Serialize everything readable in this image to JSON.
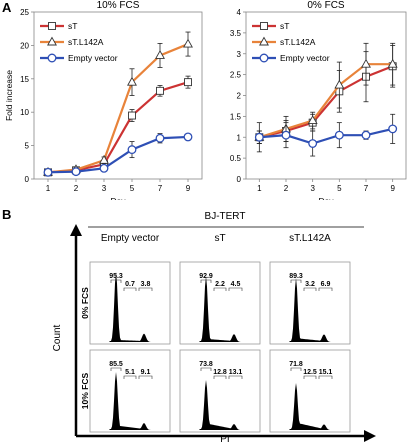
{
  "panel_letters": {
    "a": "A",
    "b": "B"
  },
  "chart_data": [
    {
      "type": "line",
      "title": "10% FCS",
      "xlabel": "Day",
      "ylabel": "Fold increase",
      "x": [
        1,
        2,
        3,
        5,
        7,
        9
      ],
      "ylim": [
        0,
        25
      ],
      "yticks": [
        0,
        5,
        10,
        15,
        20,
        25
      ],
      "legend_position": "top-left",
      "series": [
        {
          "name": "sT",
          "color": "#cc3333",
          "marker": "square",
          "values": [
            1,
            1.3,
            2.2,
            9.5,
            13.2,
            14.5
          ],
          "errors": [
            0.2,
            0.3,
            0.4,
            0.9,
            0.8,
            0.9
          ]
        },
        {
          "name": "sT.L142A",
          "color": "#e8833a",
          "marker": "triangle",
          "values": [
            1,
            1.4,
            2.8,
            14.5,
            18.5,
            20.2
          ],
          "errors": [
            0.2,
            0.3,
            0.5,
            2.0,
            1.8,
            1.8
          ]
        },
        {
          "name": "Empty vector",
          "color": "#2e4fb5",
          "marker": "circle",
          "values": [
            1,
            1.1,
            1.6,
            4.4,
            6.1,
            6.3
          ],
          "errors": [
            0.2,
            0.2,
            0.3,
            1.2,
            0.7,
            0.3
          ]
        }
      ]
    },
    {
      "type": "line",
      "title": "0% FCS",
      "xlabel": "Day",
      "ylabel": "",
      "x": [
        1,
        2,
        3,
        5,
        7,
        9
      ],
      "ylim": [
        0,
        4
      ],
      "yticks": [
        0,
        0.5,
        1,
        1.5,
        2,
        2.5,
        3,
        3.5,
        4
      ],
      "legend_position": "top-left",
      "series": [
        {
          "name": "sT",
          "color": "#cc3333",
          "marker": "square",
          "values": [
            1,
            1.15,
            1.35,
            2.1,
            2.45,
            2.7
          ],
          "errors": [
            0.15,
            0.25,
            0.2,
            0.5,
            0.6,
            0.5
          ]
        },
        {
          "name": "sT.L142A",
          "color": "#e8833a",
          "marker": "triangle",
          "values": [
            1,
            1.2,
            1.4,
            2.25,
            2.75,
            2.75
          ],
          "errors": [
            0.15,
            0.3,
            0.2,
            0.55,
            0.5,
            0.5
          ]
        },
        {
          "name": "Empty vector",
          "color": "#2e4fb5",
          "marker": "circle",
          "values": [
            1,
            1.05,
            0.85,
            1.05,
            1.05,
            1.2
          ],
          "errors": [
            0.35,
            0.3,
            0.3,
            0.3,
            0.1,
            0.35
          ]
        }
      ]
    },
    {
      "type": "histogram",
      "group_label": "BJ-TERT",
      "columns": [
        "Empty vector",
        "sT",
        "sT.L142A"
      ],
      "rows": [
        "0% FCS",
        "10% FCS"
      ],
      "yaxis_label": "Count",
      "xaxis_label": "PI",
      "panels": [
        {
          "row": "0% FCS",
          "column": "Empty vector",
          "values": [
            "95.3",
            "0.7",
            "3.8"
          ]
        },
        {
          "row": "0% FCS",
          "column": "sT",
          "values": [
            "92.9",
            "2.2",
            "4.5"
          ]
        },
        {
          "row": "0% FCS",
          "column": "sT.L142A",
          "values": [
            "89.3",
            "3.2",
            "6.9"
          ]
        },
        {
          "row": "10% FCS",
          "column": "Empty vector",
          "values": [
            "85.5",
            "5.1",
            "9.1"
          ]
        },
        {
          "row": "10% FCS",
          "column": "sT",
          "values": [
            "73.8",
            "12.8",
            "13.1"
          ]
        },
        {
          "row": "10% FCS",
          "column": "sT.L142A",
          "values": [
            "71.8",
            "12.5",
            "15.1"
          ]
        }
      ]
    }
  ]
}
